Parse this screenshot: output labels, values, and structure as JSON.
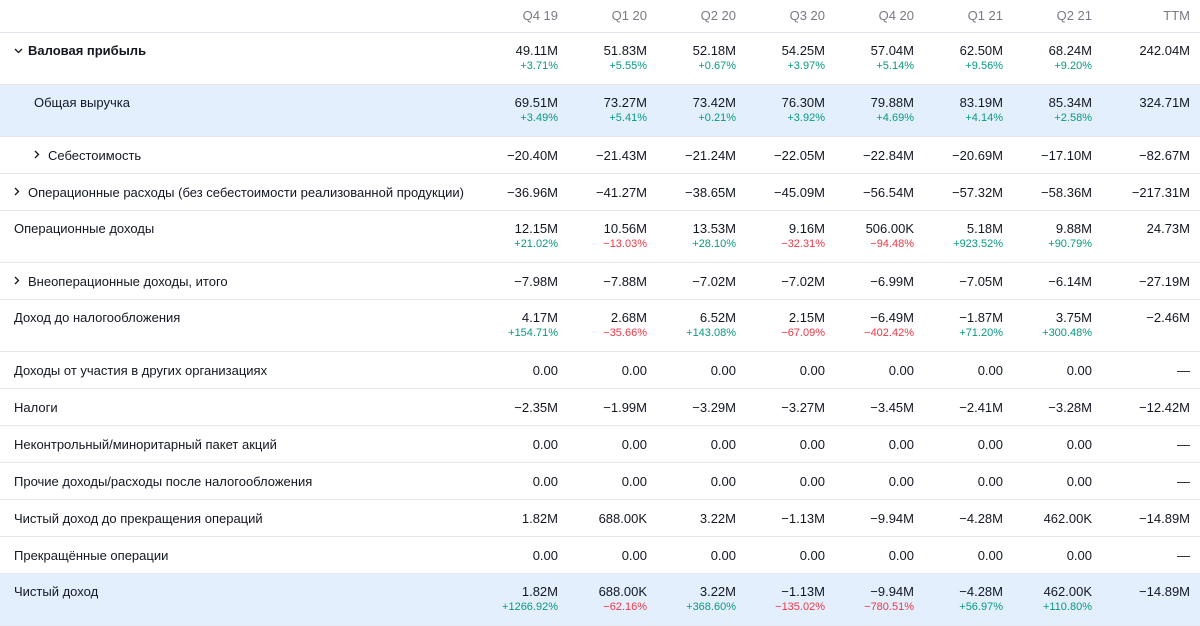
{
  "columns": [
    "Q4 19",
    "Q1 20",
    "Q2 20",
    "Q3 20",
    "Q4 20",
    "Q1 21",
    "Q2 21",
    "TTM"
  ],
  "rows": [
    {
      "label": "Валовая прибыль",
      "values": [
        "49.11M",
        "51.83M",
        "52.18M",
        "54.25M",
        "57.04M",
        "62.50M",
        "68.24M",
        "242.04M"
      ],
      "changes": [
        "+3.71%",
        "+5.55%",
        "+0.67%",
        "+3.97%",
        "+5.14%",
        "+9.56%",
        "+9.20%",
        ""
      ]
    },
    {
      "label": "Общая выручка",
      "values": [
        "69.51M",
        "73.27M",
        "73.42M",
        "76.30M",
        "79.88M",
        "83.19M",
        "85.34M",
        "324.71M"
      ],
      "changes": [
        "+3.49%",
        "+5.41%",
        "+0.21%",
        "+3.92%",
        "+4.69%",
        "+4.14%",
        "+2.58%",
        ""
      ]
    },
    {
      "label": "Себестоимость",
      "values": [
        "−20.40M",
        "−21.43M",
        "−21.24M",
        "−22.05M",
        "−22.84M",
        "−20.69M",
        "−17.10M",
        "−82.67M"
      ]
    },
    {
      "label": "Операционные расходы (без себестоимости реализованной продукции)",
      "values": [
        "−36.96M",
        "−41.27M",
        "−38.65M",
        "−45.09M",
        "−56.54M",
        "−57.32M",
        "−58.36M",
        "−217.31M"
      ]
    },
    {
      "label": "Операционные доходы",
      "values": [
        "12.15M",
        "10.56M",
        "13.53M",
        "9.16M",
        "506.00K",
        "5.18M",
        "9.88M",
        "24.73M"
      ],
      "changes": [
        "+21.02%",
        "−13.03%",
        "+28.10%",
        "−32.31%",
        "−94.48%",
        "+923.52%",
        "+90.79%",
        ""
      ]
    },
    {
      "label": "Внеоперационные доходы, итого",
      "values": [
        "−7.98M",
        "−7.88M",
        "−7.02M",
        "−7.02M",
        "−6.99M",
        "−7.05M",
        "−6.14M",
        "−27.19M"
      ]
    },
    {
      "label": "Доход до налогообложения",
      "values": [
        "4.17M",
        "2.68M",
        "6.52M",
        "2.15M",
        "−6.49M",
        "−1.87M",
        "3.75M",
        "−2.46M"
      ],
      "changes": [
        "+154.71%",
        "−35.66%",
        "+143.08%",
        "−67.09%",
        "−402.42%",
        "+71.20%",
        "+300.48%",
        ""
      ]
    },
    {
      "label": "Доходы от участия в других организациях",
      "values": [
        "0.00",
        "0.00",
        "0.00",
        "0.00",
        "0.00",
        "0.00",
        "0.00",
        "—"
      ]
    },
    {
      "label": "Налоги",
      "values": [
        "−2.35M",
        "−1.99M",
        "−3.29M",
        "−3.27M",
        "−3.45M",
        "−2.41M",
        "−3.28M",
        "−12.42M"
      ]
    },
    {
      "label": "Неконтрольный/миноритарный пакет акций",
      "values": [
        "0.00",
        "0.00",
        "0.00",
        "0.00",
        "0.00",
        "0.00",
        "0.00",
        "—"
      ]
    },
    {
      "label": "Прочие доходы/расходы после налогообложения",
      "values": [
        "0.00",
        "0.00",
        "0.00",
        "0.00",
        "0.00",
        "0.00",
        "0.00",
        "—"
      ]
    },
    {
      "label": "Чистый доход до прекращения операций",
      "values": [
        "1.82M",
        "688.00K",
        "3.22M",
        "−1.13M",
        "−9.94M",
        "−4.28M",
        "462.00K",
        "−14.89M"
      ]
    },
    {
      "label": "Прекращённые операции",
      "values": [
        "0.00",
        "0.00",
        "0.00",
        "0.00",
        "0.00",
        "0.00",
        "0.00",
        "—"
      ]
    },
    {
      "label": "Чистый доход",
      "values": [
        "1.82M",
        "688.00K",
        "3.22M",
        "−1.13M",
        "−9.94M",
        "−4.28M",
        "462.00K",
        "−14.89M"
      ],
      "changes": [
        "+1266.92%",
        "−62.16%",
        "+368.60%",
        "−135.02%",
        "−780.51%",
        "+56.97%",
        "+110.80%",
        ""
      ]
    }
  ],
  "colors": {
    "positive": "#089981",
    "negative": "#f23645",
    "highlight": "#e3effd",
    "header_text": "#787b86"
  },
  "icons": {
    "expanded": "chevron-down-icon",
    "collapsed": "chevron-right-icon"
  }
}
